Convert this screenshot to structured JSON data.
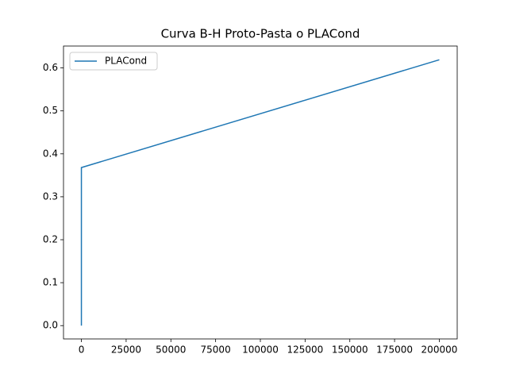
{
  "chart_data": {
    "type": "line",
    "title": "Curva B-H Proto-Pasta o PLACond",
    "x": [
      0,
      0,
      200000
    ],
    "series": [
      {
        "name": "PLACond",
        "color": "#1f77b4",
        "values": [
          0,
          0.368,
          0.619
        ]
      }
    ],
    "xlim": [
      -10000,
      210000
    ],
    "ylim": [
      -0.031,
      0.651
    ],
    "xticks": [
      0,
      25000,
      50000,
      75000,
      100000,
      125000,
      150000,
      175000,
      200000
    ],
    "yticks": [
      {
        "value": 0,
        "label": "0.0"
      },
      0.1,
      0.2,
      0.3,
      0.4,
      0.5,
      0.6
    ],
    "legend": "upper left",
    "grid": false
  }
}
